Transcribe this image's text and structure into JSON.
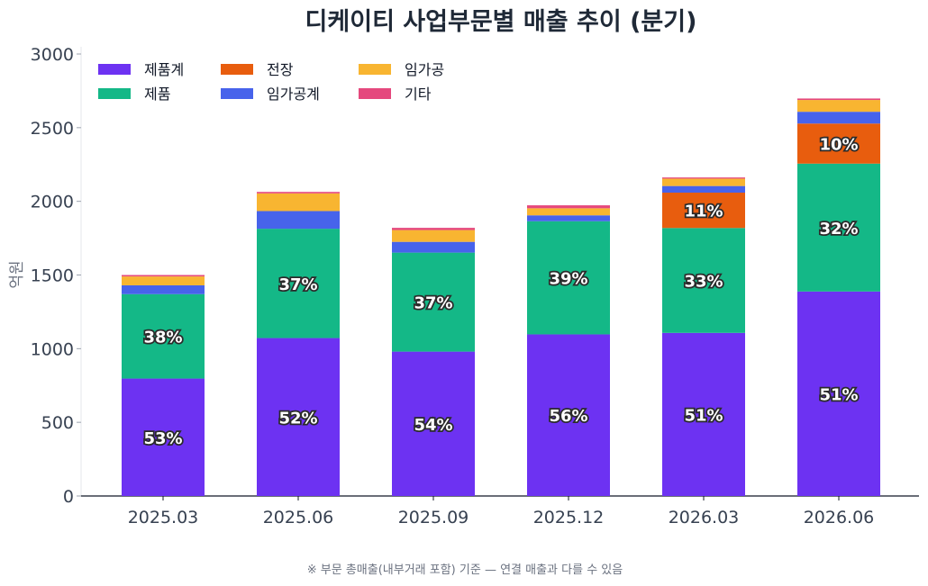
{
  "chart_data": {
    "type": "bar",
    "stacked": true,
    "title": "디케이티 사업부문별 매출 추이 (분기)",
    "ylabel": "억원",
    "xlabel": "",
    "ylim": [
      0,
      3000
    ],
    "yticks": [
      0,
      500,
      1000,
      1500,
      2000,
      2500,
      3000
    ],
    "categories": [
      "2025.03",
      "2025.06",
      "2025.09",
      "2025.12",
      "2026.03",
      "2026.06"
    ],
    "series": [
      {
        "name": "제품계",
        "color": "#6d32f2",
        "values": [
          797,
          1072,
          980,
          1097,
          1107,
          1388
        ]
      },
      {
        "name": "제품",
        "color": "#14b887",
        "values": [
          573,
          742,
          672,
          768,
          712,
          868
        ]
      },
      {
        "name": "전장",
        "color": "#e85d0e",
        "values": [
          0,
          0,
          0,
          0,
          240,
          272
        ]
      },
      {
        "name": "임가공계",
        "color": "#4763eb",
        "values": [
          60,
          120,
          73,
          40,
          45,
          80
        ]
      },
      {
        "name": "임가공",
        "color": "#f8b531",
        "values": [
          60,
          120,
          80,
          48,
          50,
          80
        ]
      },
      {
        "name": "기타",
        "color": "#e5487d",
        "values": [
          10,
          10,
          15,
          20,
          8,
          10
        ]
      }
    ],
    "percent_labels": [
      [
        "53%",
        "38%",
        "",
        "",
        "",
        ""
      ],
      [
        "52%",
        "37%",
        "",
        "",
        "",
        ""
      ],
      [
        "54%",
        "37%",
        "",
        "",
        "",
        ""
      ],
      [
        "56%",
        "39%",
        "",
        "",
        "",
        ""
      ],
      [
        "51%",
        "33%",
        "11%",
        "",
        "",
        ""
      ],
      [
        "51%",
        "32%",
        "10%",
        "",
        "",
        ""
      ]
    ],
    "legend_position": "top-left",
    "grid": false
  },
  "footnote": "※ 부문 총매출(내부거래 포함) 기준 — 연결 매출과 다를 수 있음"
}
